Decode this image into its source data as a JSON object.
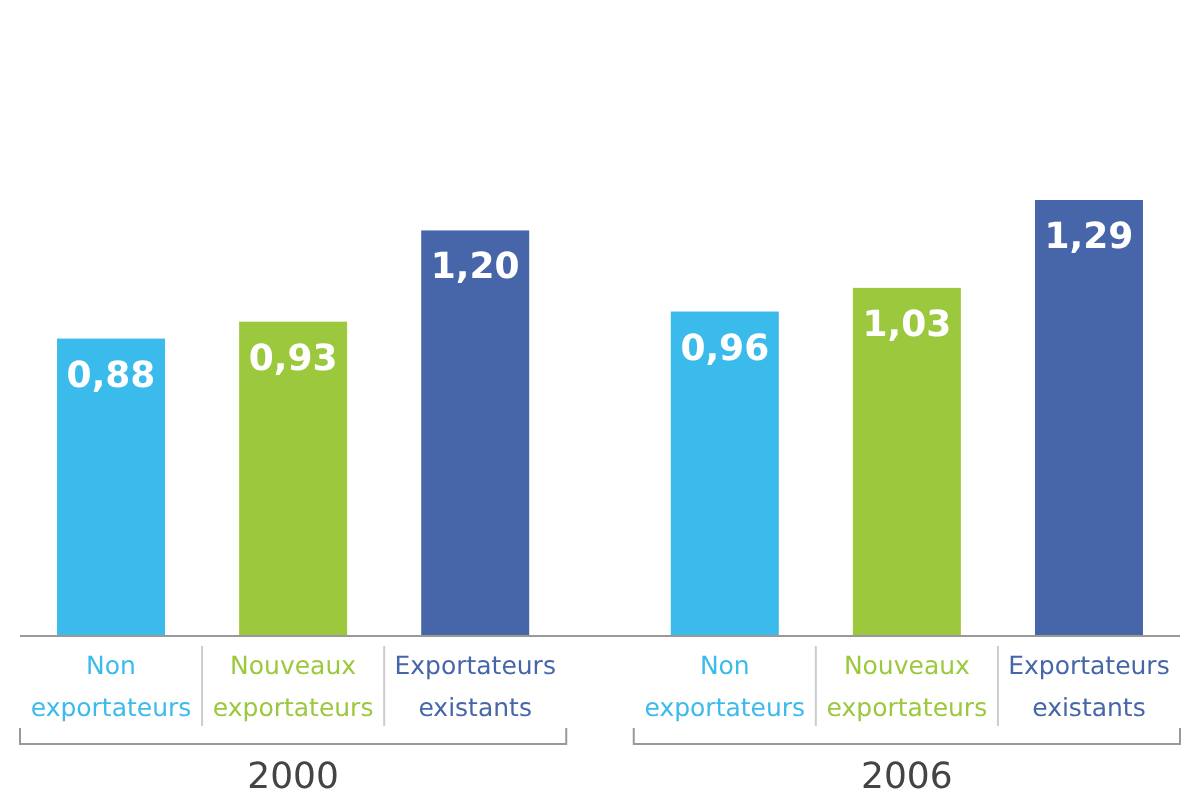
{
  "chart_data": {
    "type": "bar",
    "categories": [
      "2000",
      "2006"
    ],
    "series": [
      {
        "name": "Non exportateurs",
        "color": "#3bbbeb",
        "values": [
          0.88,
          0.96
        ],
        "value_labels": [
          "0,88",
          "0,96"
        ]
      },
      {
        "name": "Nouveaux exportateurs",
        "color": "#9bc83c",
        "values": [
          0.93,
          1.03
        ],
        "value_labels": [
          "0,93",
          "1,03"
        ]
      },
      {
        "name": "Exportateurs existants",
        "color": "#4666a9",
        "values": [
          1.2,
          1.29
        ],
        "value_labels": [
          "1,20",
          "1,29"
        ]
      }
    ],
    "legend": false
  }
}
